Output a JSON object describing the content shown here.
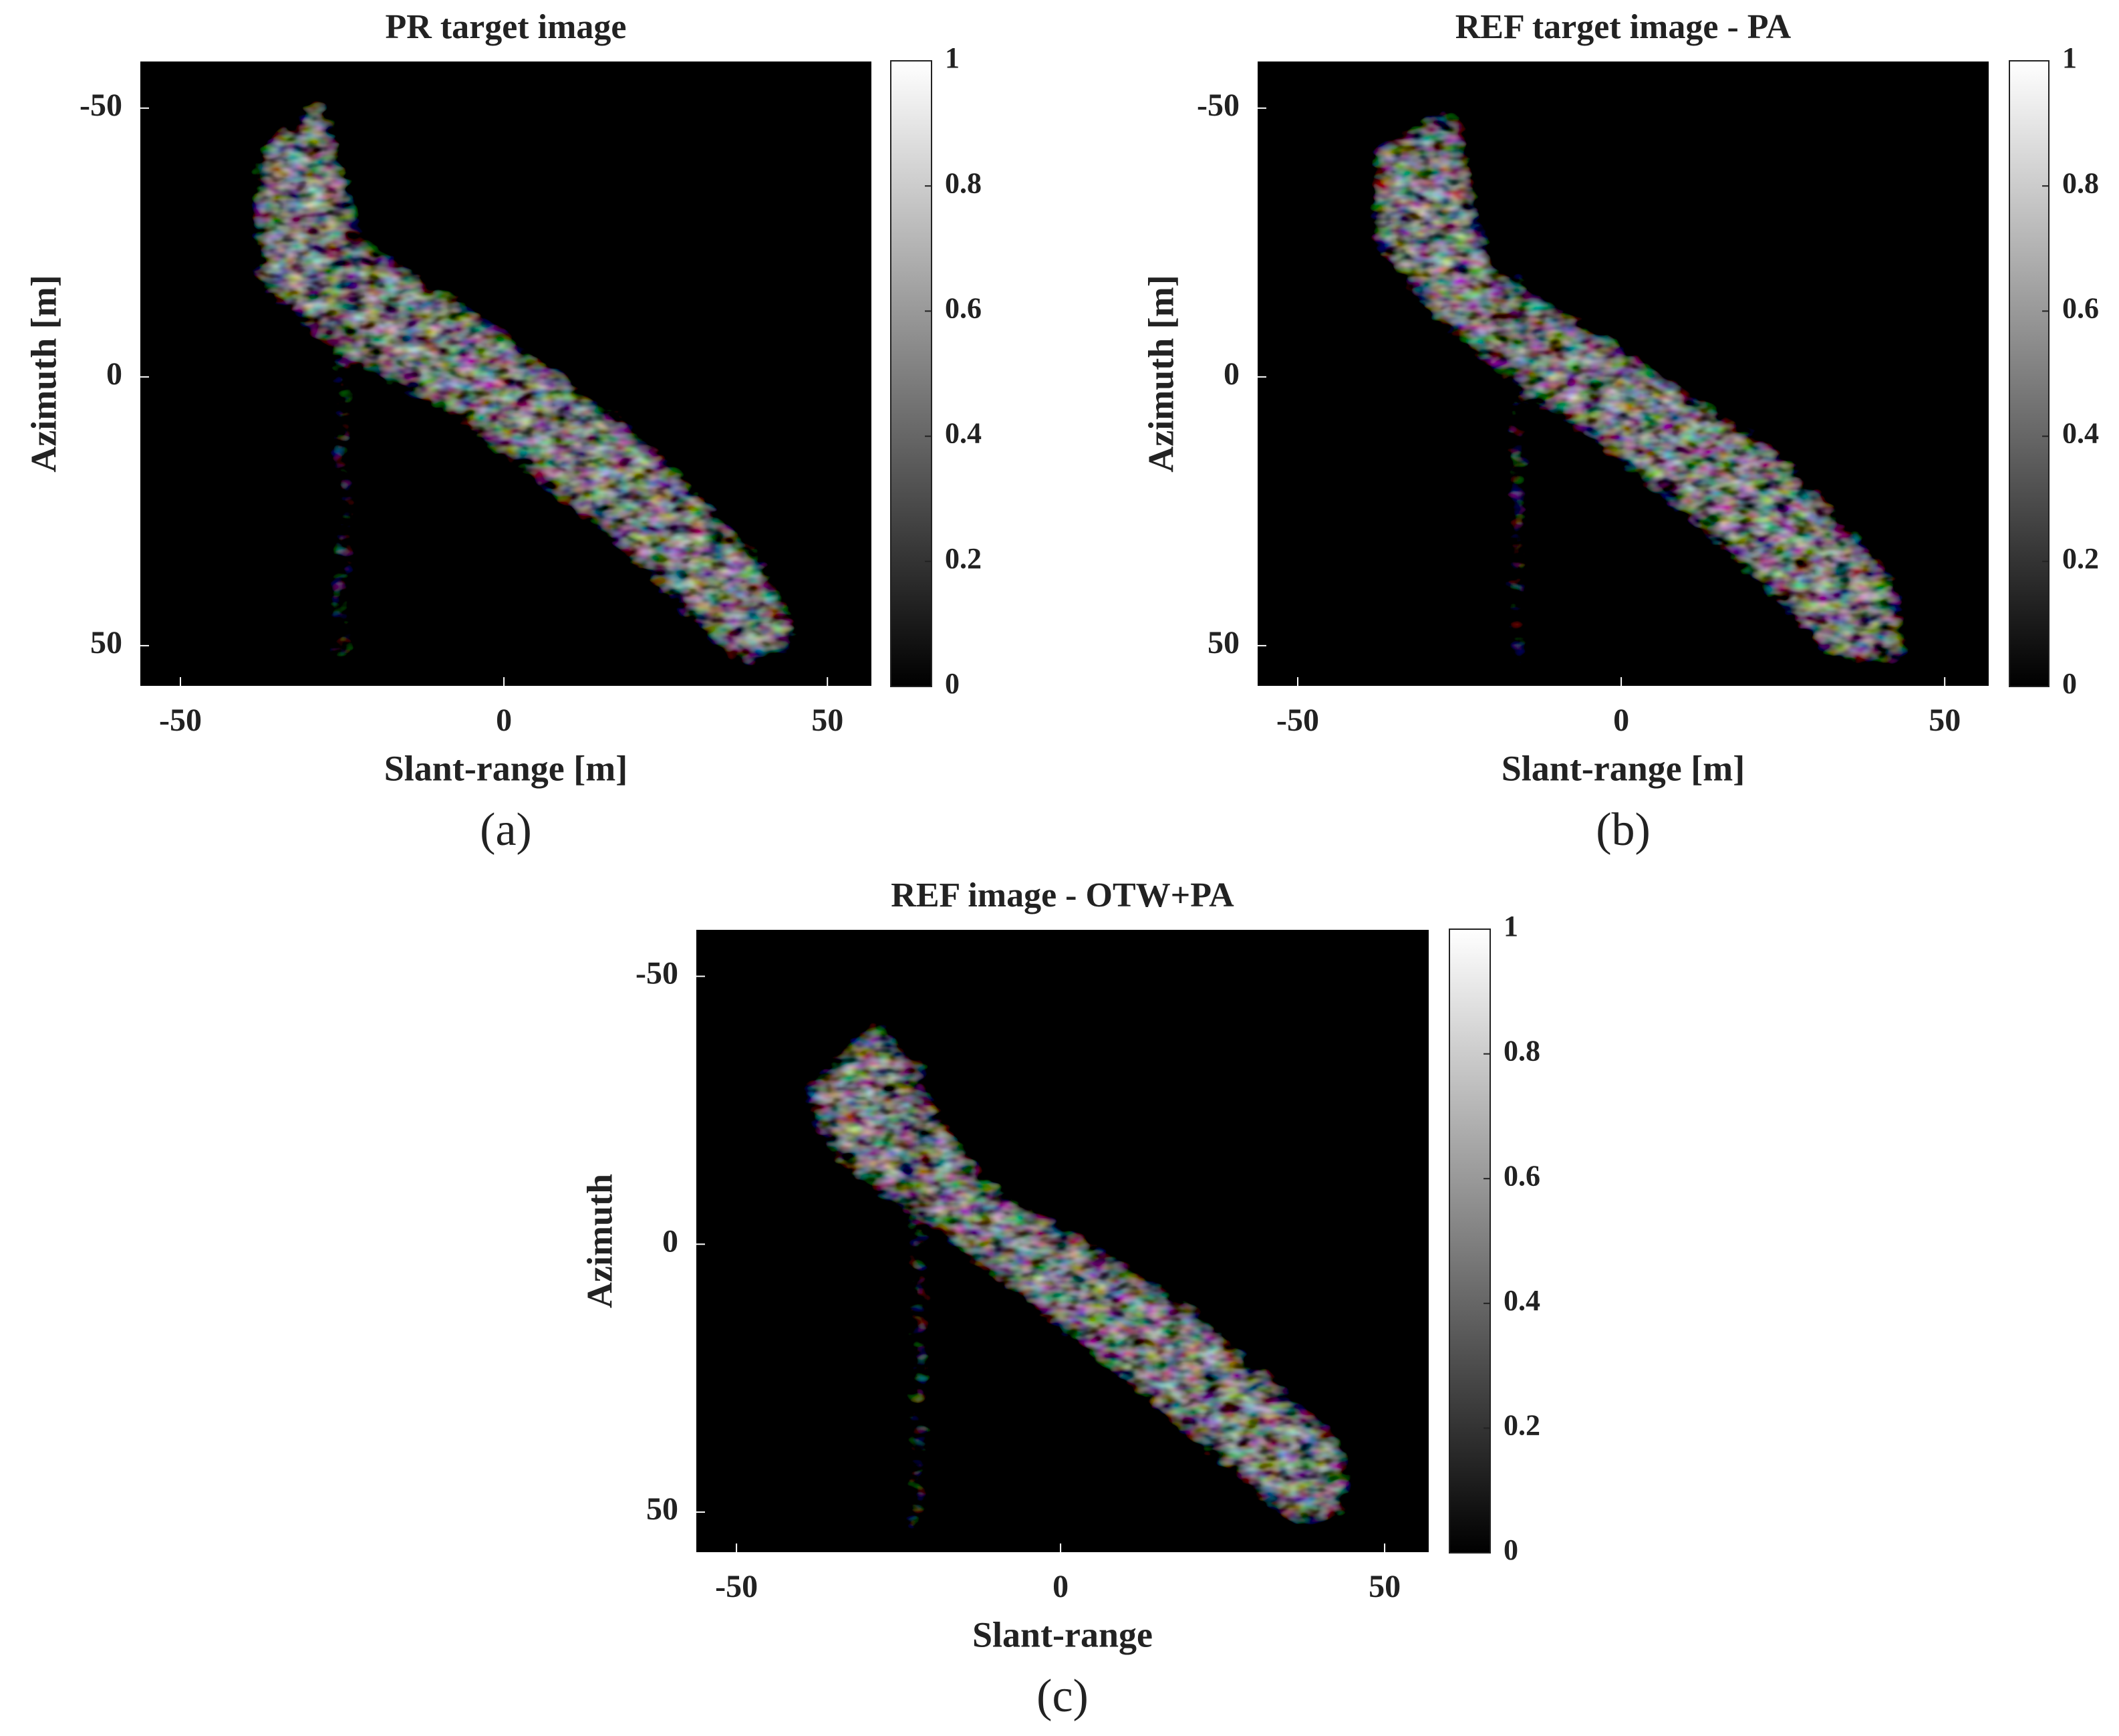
{
  "chart_data": [
    {
      "type": "image",
      "title": "PR target image",
      "xlabel": "Slant-range [m]",
      "ylabel": "Azimuth [m]",
      "panel": "(a)",
      "xlim": [
        -56.3,
        56.9
      ],
      "ylim": [
        -58.8,
        57.6
      ],
      "y_reversed": true,
      "xticks": [
        -50,
        0,
        50
      ],
      "yticks": [
        -50,
        0,
        50
      ],
      "colormap": "gray",
      "clim": [
        0,
        1
      ],
      "cticks": [
        0,
        0.2,
        0.4,
        0.6,
        0.8,
        1
      ]
    },
    {
      "type": "image",
      "title": "REF target image - PA",
      "xlabel": "Slant-range [m]",
      "ylabel": "Azimuth [m]",
      "panel": "(b)",
      "xlim": [
        -56.3,
        56.9
      ],
      "ylim": [
        -58.8,
        57.6
      ],
      "y_reversed": true,
      "xticks": [
        -50,
        0,
        50
      ],
      "yticks": [
        -50,
        0,
        50
      ],
      "colormap": "gray",
      "clim": [
        0,
        1
      ],
      "cticks": [
        0,
        0.2,
        0.4,
        0.6,
        0.8,
        1
      ]
    },
    {
      "type": "image",
      "title": "REF image - OTW+PA",
      "xlabel": "Slant-range",
      "ylabel": "Azimuth",
      "panel": "(c)",
      "xlim": [
        -56.3,
        56.9
      ],
      "ylim": [
        -58.8,
        57.6
      ],
      "y_reversed": true,
      "xticks": [
        -50,
        0,
        50
      ],
      "yticks": [
        -50,
        0,
        50
      ],
      "colormap": "gray",
      "clim": [
        0,
        1
      ],
      "cticks": [
        0,
        0.2,
        0.4,
        0.6,
        0.8,
        1
      ]
    }
  ]
}
